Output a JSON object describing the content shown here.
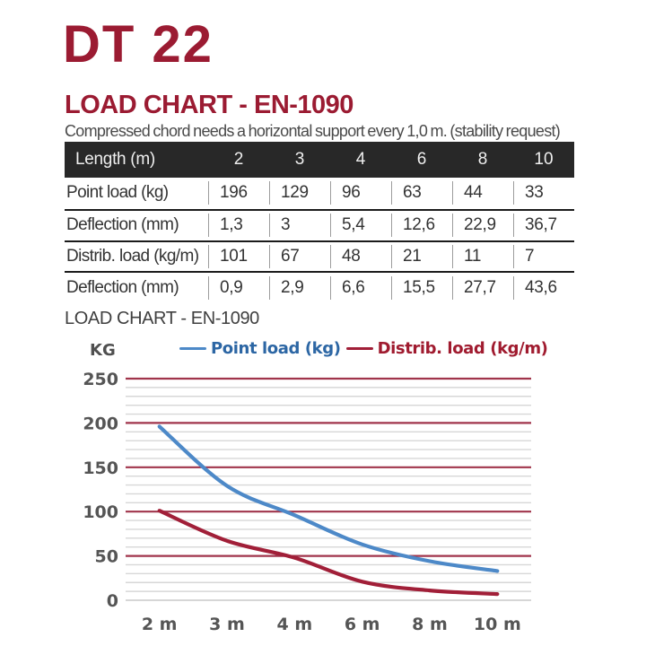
{
  "header": {
    "product": "DT 22",
    "section_title": "LOAD CHART - EN-1090",
    "subtitle": "Compressed chord needs a horizontal support every 1,0 m. (stability request)"
  },
  "table": {
    "header": [
      "Length (m)",
      "2",
      "3",
      "4",
      "6",
      "8",
      "10"
    ],
    "rows": [
      {
        "label": "Point load (kg)",
        "values": [
          "196",
          "129",
          "96",
          "63",
          "44",
          "33"
        ]
      },
      {
        "label": "Deflection (mm)",
        "values": [
          "1,3",
          "3",
          "5,4",
          "12,6",
          "22,9",
          "36,7"
        ]
      },
      {
        "label": "Distrib. load (kg/m)",
        "values": [
          "101",
          "67",
          "48",
          "21",
          "11",
          "7"
        ]
      },
      {
        "label": "Deflection (mm)",
        "values": [
          "0,9",
          "2,9",
          "6,6",
          "15,5",
          "27,7",
          "43,6"
        ]
      }
    ]
  },
  "chart_data": {
    "type": "line",
    "title": "LOAD CHART - EN-1090",
    "ylabel": "KG",
    "xlabel": "",
    "categories": [
      "2 m",
      "3 m",
      "4 m",
      "6 m",
      "8 m",
      "10 m"
    ],
    "series": [
      {
        "name": "Point load (kg)",
        "values": [
          196,
          129,
          96,
          63,
          44,
          33
        ],
        "color": "#4d89c8",
        "label_color": "#2c66a4"
      },
      {
        "name": "Distrib. load (kg/m)",
        "values": [
          101,
          67,
          48,
          21,
          11,
          7
        ],
        "color": "#a11f38",
        "label_color": "#a01b2f"
      }
    ],
    "ylim": [
      0,
      250
    ],
    "yticks": [
      0,
      50,
      100,
      150,
      200,
      250
    ],
    "ytick_major": 50,
    "ytick_minor": 10,
    "grid": true,
    "legend_position": "top",
    "grid_major_color": "#a0344b",
    "grid_minor_color": "#d7d7d7",
    "grid_zero_color": "#c9c9c9",
    "axis_label_color": "#555555"
  },
  "colors": {
    "brand_maroon": "#9b1b32",
    "table_header_bg": "#282828",
    "row_border": "#1b1b1b",
    "col_separator": "#9d9d9d"
  }
}
